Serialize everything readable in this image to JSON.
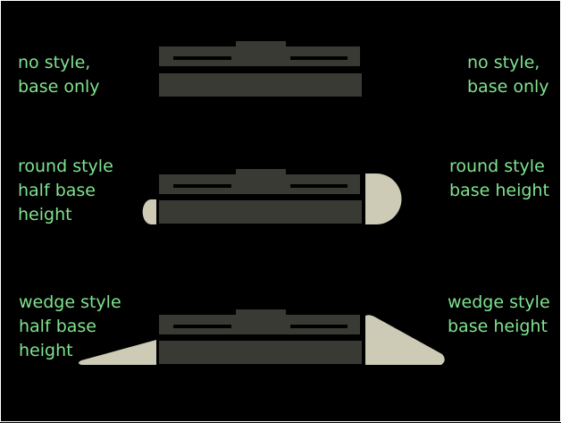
{
  "colors": {
    "background": "#000000",
    "label_text": "#7fe38f",
    "base_fill": "#3a3a35",
    "base_stroke": "#000000",
    "foot_fill": "#cdcbb6"
  },
  "labels": {
    "no_style_left": [
      "no style,",
      "base only"
    ],
    "no_style_right": [
      "no style,",
      "base only"
    ],
    "round_left": [
      "round style",
      "half base",
      "height"
    ],
    "round_right": [
      "round style",
      "base height"
    ],
    "wedge_left": [
      "wedge style",
      "half base",
      "height"
    ],
    "wedge_right": [
      "wedge style",
      "base height"
    ]
  }
}
